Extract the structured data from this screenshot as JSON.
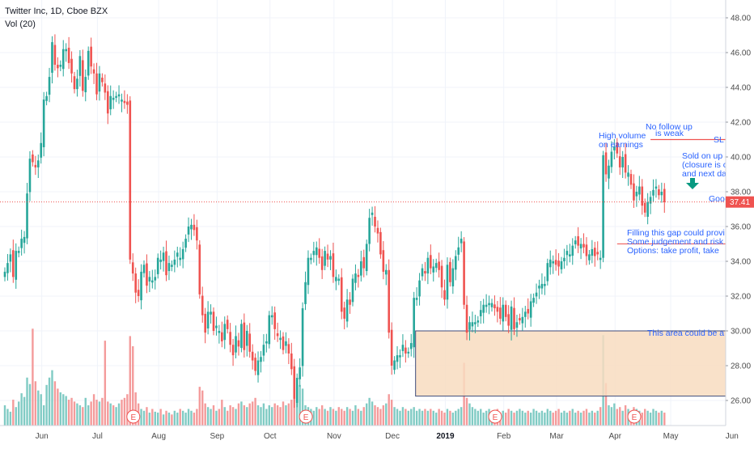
{
  "legend": {
    "title": "Twitter Inc, 1D, Cboe BZX",
    "volume": "Vol (20)"
  },
  "current_price": "37.41",
  "earnings_marker": "E",
  "annotations": {
    "high_volume_1": "High volume",
    "high_volume_2": "on earnings",
    "no_follow_1": "No follow up",
    "no_follow_2": "is weak",
    "sl": "SL",
    "sold_1": "Sold on up",
    "sold_2": "(closure is c",
    "sold_3": "and next da",
    "good": "Good",
    "gap_1": "Filling this gap could provi",
    "gap_2": "Some judgement and risk",
    "gap_3": "Options: take profit, take",
    "area": "This area could be a"
  },
  "colors": {
    "up": "#26a69a",
    "down": "#ef5350",
    "vol_up": "#80cbc4",
    "vol_down": "#f49b9b",
    "annotation": "#2962ff",
    "zone_fill": "#f8dcc0",
    "zone_border": "#3f4b7a",
    "sl_line": "#ef5350",
    "price_line": "#ef5350"
  },
  "chart_data": {
    "type": "candlestick",
    "symbol": "Twitter Inc",
    "interval": "1D",
    "exchange": "Cboe BZX",
    "ylim": [
      25.6,
      48.8
    ],
    "y_ticks": [
      "26.00",
      "28.00",
      "30.00",
      "32.00",
      "34.00",
      "36.00",
      "38.00",
      "40.00",
      "42.00",
      "44.00",
      "46.00",
      "48.00"
    ],
    "x_ticks": [
      {
        "label": "Jun",
        "i": 6,
        "bold": false
      },
      {
        "label": "Jul",
        "i": 26,
        "bold": false
      },
      {
        "label": "Aug",
        "i": 48,
        "bold": false
      },
      {
        "label": "Sep",
        "i": 69,
        "bold": false
      },
      {
        "label": "Oct",
        "i": 88,
        "bold": false
      },
      {
        "label": "Nov",
        "i": 111,
        "bold": false
      },
      {
        "label": "Dec",
        "i": 132,
        "bold": false
      },
      {
        "label": "2019",
        "i": 151,
        "bold": true
      },
      {
        "label": "Feb",
        "i": 172,
        "bold": false
      },
      {
        "label": "Mar",
        "i": 191,
        "bold": false
      },
      {
        "label": "Apr",
        "i": 212,
        "bold": false
      },
      {
        "label": "May",
        "i": 232,
        "bold": false
      },
      {
        "label": "Jun",
        "i": 254,
        "bold": false
      }
    ],
    "earnings_days": [
      45,
      107,
      175,
      225
    ],
    "closes": [
      33.4,
      33.9,
      34.4,
      33.1,
      34.6,
      34.6,
      35.3,
      35.4,
      37.9,
      39.9,
      39.7,
      39.4,
      39.8,
      40.8,
      43.3,
      43.5,
      44.6,
      46.6,
      45.3,
      45.1,
      45.3,
      46.2,
      46.2,
      45.4,
      44.8,
      43.9,
      44.5,
      45.8,
      43.8,
      44.6,
      46.1,
      45.2,
      44.8,
      43.6,
      44.8,
      44.3,
      43.7,
      42.5,
      43.5,
      43.4,
      43.5,
      43.6,
      43.3,
      43.1,
      43.0,
      34.1,
      33.3,
      32.2,
      32.0,
      33.4,
      33.8,
      32.6,
      33.1,
      32.9,
      33.1,
      34.2,
      34.1,
      34.5,
      33.2,
      33.9,
      33.8,
      34.1,
      34.5,
      34.2,
      34.7,
      35.3,
      36.0,
      36.1,
      35.8,
      35.2,
      32.1,
      30.9,
      29.9,
      31.1,
      31.1,
      30.0,
      30.3,
      30.0,
      29.4,
      30.4,
      30.1,
      29.2,
      28.6,
      29.7,
      29.1,
      30.4,
      28.9,
      30.0,
      28.8,
      28.3,
      27.7,
      28.3,
      28.5,
      29.2,
      29.4,
      30.9,
      30.9,
      30.1,
      29.7,
      29.6,
      28.9,
      29.4,
      28.7,
      27.8,
      26.1,
      27.3,
      27.9,
      31.3,
      32.8,
      34.2,
      34.2,
      34.6,
      34.8,
      34.2,
      33.5,
      34.6,
      34.1,
      34.3,
      33.1,
      33.1,
      33.0,
      31.1,
      30.7,
      31.8,
      31.5,
      33.0,
      33.3,
      33.1,
      34.0,
      33.6,
      35.0,
      36.5,
      36.8,
      36.0,
      35.6,
      34.4,
      33.4,
      33.5,
      29.9,
      28.0,
      28.3,
      28.6,
      28.6,
      29.2,
      28.7,
      28.8,
      29.3,
      31.9,
      31.9,
      32.9,
      33.6,
      33.3,
      34.2,
      33.6,
      33.7,
      33.9,
      33.5,
      32.5,
      31.8,
      33.8,
      32.8,
      33.6,
      34.3,
      34.8,
      35.3,
      31.5,
      29.9,
      30.5,
      30.5,
      30.5,
      30.6,
      31.2,
      31.5,
      31.5,
      31.6,
      31.6,
      31.3,
      31.1,
      30.7,
      31.5,
      30.8,
      30.3,
      31.4,
      30.1,
      30.5,
      30.6,
      30.8,
      31.1,
      31.0,
      31.7,
      31.9,
      32.2,
      32.6,
      32.7,
      32.7,
      33.9,
      34.1,
      34.0,
      33.8,
      33.7,
      34.0,
      34.2,
      34.6,
      34.4,
      34.9,
      35.2,
      34.9,
      35.0,
      34.8,
      34.3,
      34.4,
      34.7,
      34.3,
      34.4,
      34.2,
      40.1,
      39.0,
      39.5,
      40.3,
      40.6,
      40.2,
      39.4,
      40.0,
      39.1,
      39.1,
      38.4,
      37.5,
      38.0,
      38.3,
      37.2,
      36.8,
      37.4,
      37.7,
      38.1,
      38.3,
      37.8,
      38.0,
      37.4
    ],
    "volume_rel": [
      0.22,
      0.18,
      0.15,
      0.28,
      0.2,
      0.26,
      0.35,
      0.31,
      0.52,
      0.45,
      1.05,
      0.48,
      0.38,
      0.34,
      0.22,
      0.44,
      0.52,
      0.6,
      0.48,
      0.4,
      0.36,
      0.34,
      0.32,
      0.28,
      0.3,
      0.26,
      0.24,
      0.22,
      0.2,
      0.3,
      0.22,
      0.26,
      0.34,
      0.28,
      0.26,
      0.3,
      0.92,
      0.26,
      0.24,
      0.22,
      0.2,
      0.24,
      0.28,
      0.3,
      0.34,
      0.97,
      0.86,
      0.36,
      0.24,
      0.18,
      0.16,
      0.2,
      0.14,
      0.18,
      0.15,
      0.14,
      0.18,
      0.12,
      0.16,
      0.14,
      0.12,
      0.16,
      0.14,
      0.18,
      0.16,
      0.14,
      0.18,
      0.16,
      0.14,
      0.18,
      0.42,
      0.38,
      0.24,
      0.2,
      0.18,
      0.22,
      0.16,
      0.18,
      0.28,
      0.2,
      0.16,
      0.22,
      0.2,
      0.18,
      0.24,
      0.26,
      0.22,
      0.2,
      0.24,
      0.26,
      0.3,
      0.22,
      0.2,
      0.24,
      0.18,
      0.22,
      0.2,
      0.24,
      0.22,
      0.2,
      0.26,
      0.22,
      0.24,
      0.28,
      0.4,
      0.34,
      0.44,
      0.4,
      0.22,
      0.2,
      0.18,
      0.16,
      0.2,
      0.18,
      0.22,
      0.18,
      0.16,
      0.2,
      0.18,
      0.16,
      0.2,
      0.18,
      0.16,
      0.2,
      0.18,
      0.16,
      0.22,
      0.18,
      0.16,
      0.2,
      0.24,
      0.3,
      0.26,
      0.22,
      0.2,
      0.18,
      0.22,
      0.24,
      0.34,
      0.28,
      0.2,
      0.18,
      0.16,
      0.2,
      0.18,
      0.16,
      0.18,
      0.2,
      0.16,
      0.18,
      0.16,
      0.18,
      0.16,
      0.18,
      0.16,
      0.14,
      0.18,
      0.16,
      0.14,
      0.18,
      0.16,
      0.14,
      0.16,
      0.18,
      0.2,
      0.68,
      0.3,
      0.24,
      0.2,
      0.18,
      0.16,
      0.18,
      0.14,
      0.16,
      0.18,
      0.14,
      0.16,
      0.18,
      0.14,
      0.16,
      0.14,
      0.18,
      0.16,
      0.14,
      0.16,
      0.18,
      0.16,
      0.14,
      0.16,
      0.14,
      0.18,
      0.16,
      0.14,
      0.16,
      0.14,
      0.18,
      0.16,
      0.14,
      0.16,
      0.18,
      0.14,
      0.16,
      0.14,
      0.16,
      0.18,
      0.14,
      0.16,
      0.14,
      0.16,
      0.18,
      0.14,
      0.16,
      0.14,
      0.16,
      0.2,
      0.98,
      0.46,
      0.22,
      0.2,
      0.24,
      0.18,
      0.2,
      0.16,
      0.22,
      0.18,
      0.16,
      0.2,
      0.18,
      0.16,
      0.14,
      0.18,
      0.16,
      0.14,
      0.18,
      0.16,
      0.14,
      0.16,
      0.14
    ],
    "levels": {
      "last_price": 37.41,
      "stop_loss": 41.0,
      "gap_line": 35.0,
      "support_zone": [
        26.25,
        30.0
      ]
    }
  }
}
